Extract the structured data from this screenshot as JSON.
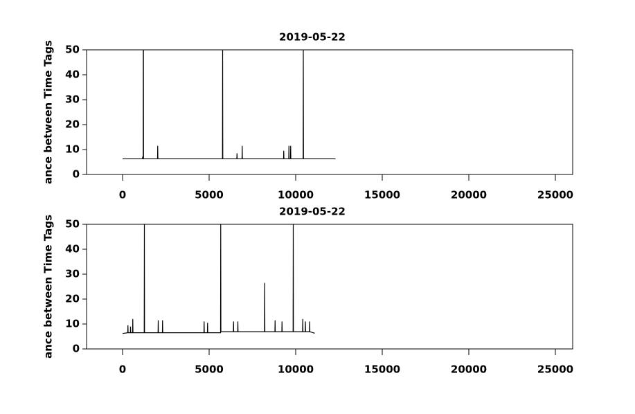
{
  "chart_data": [
    {
      "type": "line",
      "title": "2019-05-22",
      "ylabel": "ance between Time Tags",
      "color": "#000000",
      "x": [
        0,
        1150,
        1160,
        1190,
        1195,
        1200,
        1205,
        1210,
        2020,
        2030,
        2040,
        5770,
        5780,
        5790,
        6600,
        6610,
        6620,
        6900,
        6910,
        6920,
        9300,
        9310,
        9320,
        9600,
        9610,
        9620,
        9700,
        9710,
        9720,
        10430,
        10440,
        10450,
        12300
      ],
      "values": [
        6.3,
        6.3,
        7,
        7,
        50,
        6.3,
        50,
        6.3,
        6.3,
        11.5,
        6.3,
        6.3,
        50,
        6.3,
        6.3,
        8.5,
        6.3,
        6.3,
        11.5,
        6.3,
        6.3,
        9.5,
        6.3,
        6.3,
        11.5,
        6.3,
        6.3,
        11.5,
        6.3,
        6.3,
        50,
        6.3,
        6.3
      ],
      "xlim": [
        -2080,
        26000
      ],
      "ylim": [
        0,
        50
      ],
      "xticks": [
        0,
        5000,
        10000,
        15000,
        20000,
        25000
      ],
      "yticks": [
        0,
        10,
        20,
        30,
        40,
        50
      ]
    },
    {
      "type": "line",
      "title": "2019-05-22",
      "ylabel": "ance between Time Tags",
      "color": "#000000",
      "x": [
        0,
        300,
        310,
        320,
        450,
        460,
        470,
        580,
        590,
        600,
        1250,
        1260,
        1270,
        2050,
        2060,
        2070,
        2300,
        2310,
        2320,
        4700,
        4710,
        4720,
        4900,
        4910,
        4920,
        5660,
        5670,
        5680,
        6400,
        6410,
        6420,
        6650,
        6660,
        6670,
        8200,
        8210,
        8220,
        8800,
        8810,
        8820,
        9200,
        9210,
        9220,
        9850,
        9860,
        9870,
        10400,
        10410,
        10420,
        10550,
        10560,
        10570,
        10800,
        10810,
        10820,
        11100
      ],
      "values": [
        6.2,
        6.5,
        9.5,
        6.5,
        6.5,
        9,
        6.5,
        6.5,
        12,
        6.5,
        6.5,
        50,
        6.5,
        6.5,
        11.5,
        6.5,
        6.5,
        11.5,
        6.5,
        6.5,
        11,
        6.5,
        6.5,
        10.5,
        6.5,
        6.5,
        50,
        6.9,
        6.9,
        11,
        6.9,
        6.9,
        11,
        6.9,
        6.9,
        26.5,
        6.9,
        6.9,
        11.5,
        6.9,
        6.9,
        11,
        6.9,
        6.9,
        50,
        6.9,
        6.9,
        12,
        6.9,
        6.9,
        11,
        6.9,
        6.9,
        11,
        6.9,
        6.3
      ],
      "xlim": [
        -2080,
        26000
      ],
      "ylim": [
        0,
        50
      ],
      "xticks": [
        0,
        5000,
        10000,
        15000,
        20000,
        25000
      ],
      "yticks": [
        0,
        10,
        20,
        30,
        40,
        50
      ]
    }
  ]
}
